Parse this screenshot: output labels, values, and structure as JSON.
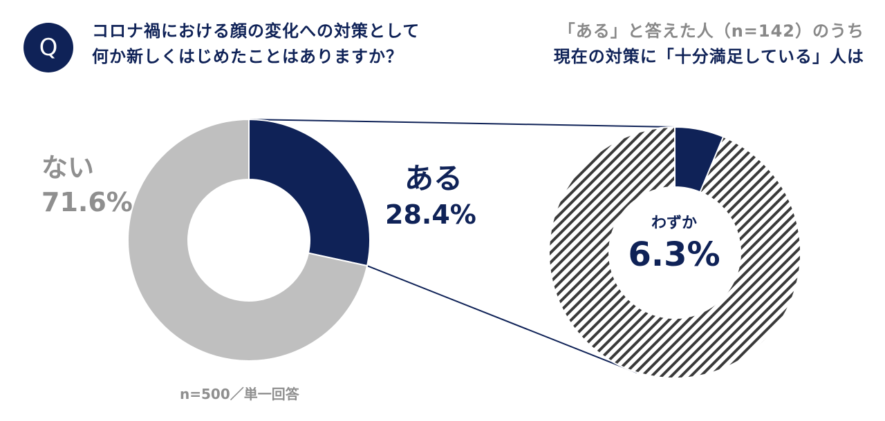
{
  "question": {
    "badge": "Q",
    "line1": "コロナ禍における顔の変化への対策として",
    "line2": "何か新しくはじめたことはありますか？"
  },
  "subtitle": {
    "line1": "「ある」と答えた人（n=142）のうち",
    "line2": "現在の対策に「十分満足している」人は"
  },
  "note": "n=500／単一回答",
  "colors": {
    "navy": "#0f2257",
    "gray": "#bfbfbf",
    "gray_text": "#8f8f8f",
    "hatch_line": "#3a3a3a"
  },
  "chart_data": [
    {
      "type": "pie",
      "style": "donut",
      "slices": [
        {
          "label": "ある",
          "value": 28.4,
          "value_label": "28.4%",
          "color": "#0f2257"
        },
        {
          "label": "ない",
          "value": 71.6,
          "value_label": "71.6%",
          "color": "#bfbfbf"
        }
      ]
    },
    {
      "type": "pie",
      "style": "donut",
      "center_label": "わずか",
      "center_value_label": "6.3%",
      "slices": [
        {
          "label": "",
          "value": 6.3,
          "color": "#0f2257"
        },
        {
          "label": "",
          "value": 93.7,
          "fill": "hatched"
        }
      ]
    }
  ],
  "labels": {
    "nai_cat": "ない",
    "nai_val": "71.6%",
    "aru_cat": "ある",
    "aru_val": "28.4%"
  }
}
